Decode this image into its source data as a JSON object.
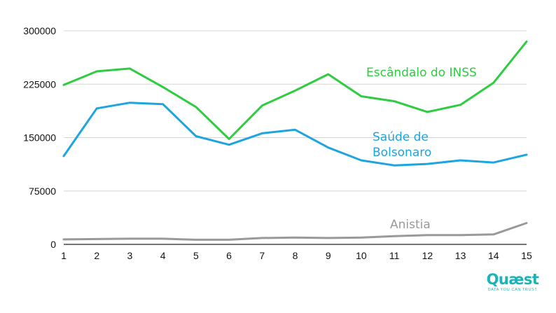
{
  "chart_data": {
    "type": "line",
    "title": "",
    "xlabel": "",
    "ylabel": "",
    "x": [
      1,
      2,
      3,
      4,
      5,
      6,
      7,
      8,
      9,
      10,
      11,
      12,
      13,
      14,
      15
    ],
    "ylim": [
      0,
      300000
    ],
    "yticks": [
      "300000",
      "225000",
      "150000",
      "75000",
      "0"
    ],
    "grid": true,
    "series": [
      {
        "name": "Escândalo do INSS",
        "color": "#2ecc40",
        "values": [
          224000,
          243000,
          247000,
          221000,
          193000,
          148000,
          195000,
          216000,
          239000,
          208000,
          201000,
          186000,
          196000,
          227000,
          285000
        ]
      },
      {
        "name": "Saúde de Bolsonaro",
        "color": "#1ea5e0",
        "values": [
          124000,
          191000,
          199000,
          197000,
          152000,
          140000,
          156000,
          161000,
          136000,
          118000,
          111000,
          113000,
          118000,
          115000,
          126000
        ]
      },
      {
        "name": "Anistia",
        "color": "#999999",
        "values": [
          7000,
          7500,
          8000,
          8000,
          6500,
          6500,
          9000,
          9500,
          9000,
          9500,
          11500,
          13000,
          13000,
          14000,
          30000
        ]
      }
    ]
  },
  "logo": {
    "word": "Quæst",
    "tagline": "DATA YOU CAN TRUST"
  }
}
